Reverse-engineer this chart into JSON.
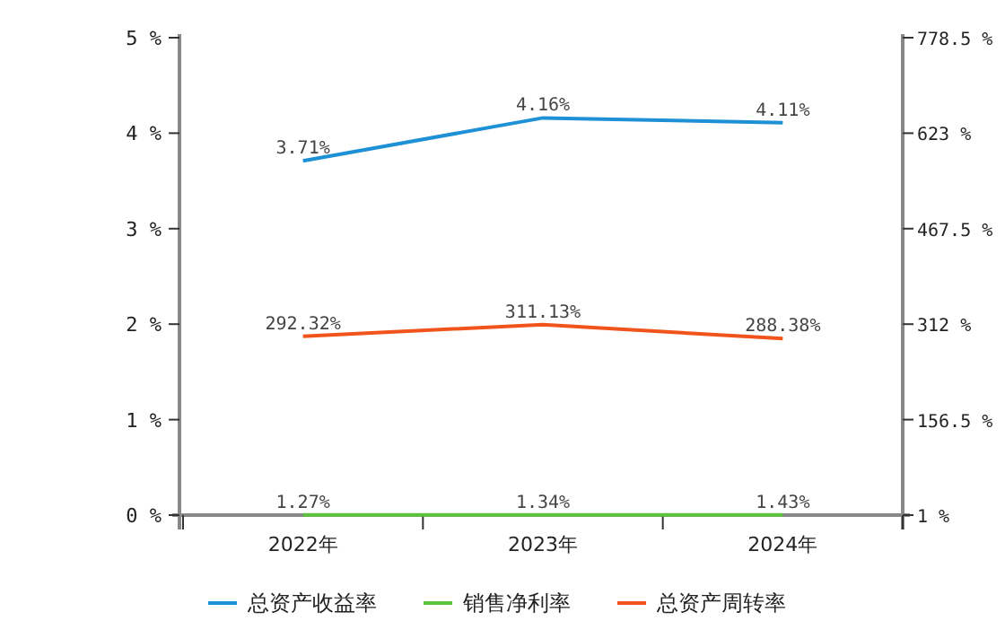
{
  "chart_data": {
    "type": "line",
    "categories": [
      "2022年",
      "2023年",
      "2024年"
    ],
    "series": [
      {
        "name": "总资产收益率",
        "color": "#1e90d6",
        "values": [
          3.71,
          4.16,
          4.11
        ],
        "value_labels": [
          "3.71%",
          "4.16%",
          "4.11%"
        ]
      },
      {
        "name": "销售净利率",
        "color": "#5cc43c",
        "values": [
          1.27,
          1.34,
          1.43
        ],
        "value_labels": [
          "1.27%",
          "1.34%",
          "1.43%"
        ],
        "axis": "y2"
      },
      {
        "name": "总资产周转率",
        "color": "#f0541c",
        "values": [
          292.32,
          311.13,
          288.38
        ],
        "value_labels": [
          "292.32%",
          "311.13%",
          "288.38%"
        ],
        "axis": "y2"
      }
    ],
    "ylim": [
      0,
      5
    ],
    "yticks": [
      {
        "value": 0,
        "label": "0 %"
      },
      {
        "value": 1,
        "label": "1 %"
      },
      {
        "value": 2,
        "label": "2 %"
      },
      {
        "value": 3,
        "label": "3 %"
      },
      {
        "value": 4,
        "label": "4 %"
      },
      {
        "value": 5,
        "label": "5 %"
      }
    ],
    "y2lim": [
      1,
      778.5
    ],
    "y2ticks": [
      {
        "value": 1,
        "label": "1 %"
      },
      {
        "value": 156.5,
        "label": "156.5 %"
      },
      {
        "value": 312,
        "label": "312 %"
      },
      {
        "value": 467.5,
        "label": "467.5 %"
      },
      {
        "value": 623,
        "label": "623 %"
      },
      {
        "value": 778.5,
        "label": "778.5 %"
      }
    ],
    "legend": "bottom",
    "marker": "none",
    "line_style": "solid",
    "grid": false
  }
}
